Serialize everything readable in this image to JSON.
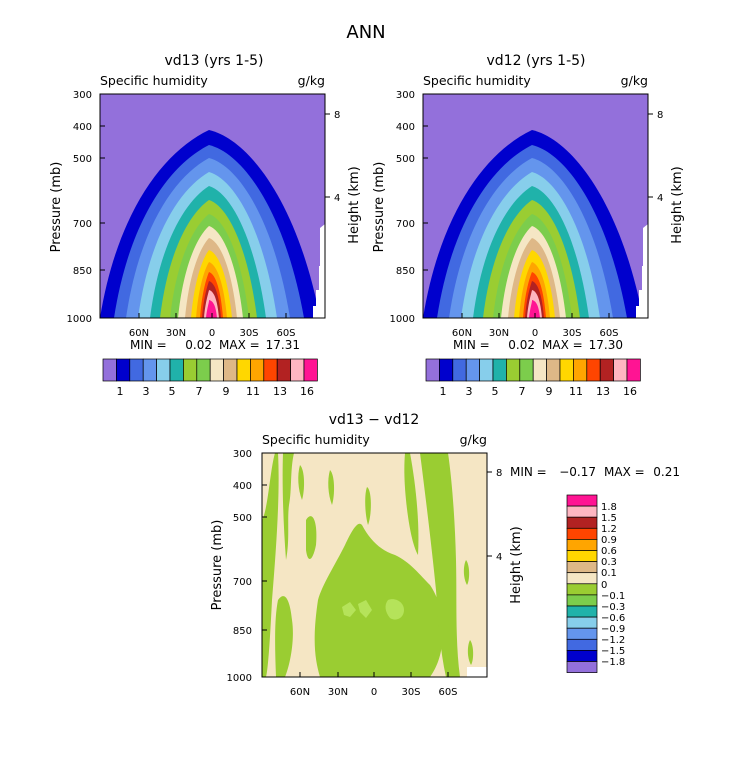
{
  "figure_title": "ANN",
  "chart_data": [
    {
      "type": "heatmap",
      "title": "vd13 (yrs 1-5)",
      "subtitle_left": "Specific humidity",
      "subtitle_right": "g/kg",
      "ylabel": "Pressure (mb)",
      "ylabel_right": "Height (km)",
      "x_ticks": [
        "60N",
        "30N",
        "0",
        "30S",
        "60S"
      ],
      "y_ticks": [
        "300",
        "400",
        "500",
        "700",
        "850",
        "1000"
      ],
      "height_ticks": [
        "8",
        "4"
      ],
      "min_label": "MIN =",
      "min_value": "0.02",
      "max_label": "MAX =",
      "max_value": "17.31",
      "colorbar_labels": [
        "1",
        "3",
        "5",
        "7",
        "9",
        "11",
        "13",
        "16"
      ],
      "peak": 17.31,
      "minimum": 0.02
    },
    {
      "type": "heatmap",
      "title": "vd12 (yrs 1-5)",
      "subtitle_left": "Specific humidity",
      "subtitle_right": "g/kg",
      "ylabel": "Pressure (mb)",
      "ylabel_right": "Height (km)",
      "x_ticks": [
        "60N",
        "30N",
        "0",
        "30S",
        "60S"
      ],
      "y_ticks": [
        "300",
        "400",
        "500",
        "700",
        "850",
        "1000"
      ],
      "height_ticks": [
        "8",
        "4"
      ],
      "min_label": "MIN =",
      "min_value": "0.02",
      "max_label": "MAX =",
      "max_value": "17.30",
      "colorbar_labels": [
        "1",
        "3",
        "5",
        "7",
        "9",
        "11",
        "13",
        "16"
      ],
      "peak": 17.3,
      "minimum": 0.02
    },
    {
      "type": "heatmap",
      "title": "vd13 − vd12",
      "subtitle_left": "Specific humidity",
      "subtitle_right": "g/kg",
      "ylabel": "Pressure (mb)",
      "ylabel_right": "Height (km)",
      "x_ticks": [
        "60N",
        "30N",
        "0",
        "30S",
        "60S"
      ],
      "y_ticks": [
        "300",
        "400",
        "500",
        "700",
        "850",
        "1000"
      ],
      "height_ticks": [
        "8",
        "4"
      ],
      "min_label": "MIN =",
      "min_value": "−0.17",
      "max_label": "MAX =",
      "max_value": "0.21",
      "colorbar_labels": [
        "1.8",
        "1.5",
        "1.2",
        "0.9",
        "0.6",
        "0.3",
        "0.1",
        "0",
        "−0.1",
        "−0.3",
        "−0.6",
        "−0.9",
        "−1.2",
        "−1.5",
        "−1.8"
      ]
    }
  ],
  "colors": {
    "abs_scale": [
      "#9370DB",
      "#0000CD",
      "#4169E1",
      "#6495ED",
      "#87CEEB",
      "#20B2AA",
      "#9ACD32",
      "#7CCD4C",
      "#F5E6C4",
      "#DEB887",
      "#FFD700",
      "#FFA500",
      "#FF4500",
      "#B22222",
      "#FFB6C1",
      "#FF1493"
    ],
    "diff_scale": [
      "#FF1493",
      "#FFB6C1",
      "#B22222",
      "#FF4500",
      "#FFA500",
      "#FFD700",
      "#DEB887",
      "#F5E6C4",
      "#9ACD32",
      "#7CCD4C",
      "#20B2AA",
      "#87CEEB",
      "#6495ED",
      "#4169E1",
      "#0000CD",
      "#9370DB"
    ],
    "diff_background": "#F5E6C4",
    "diff_positive": "#9ACD32",
    "diff_positive_strong": "#B5E35A"
  }
}
